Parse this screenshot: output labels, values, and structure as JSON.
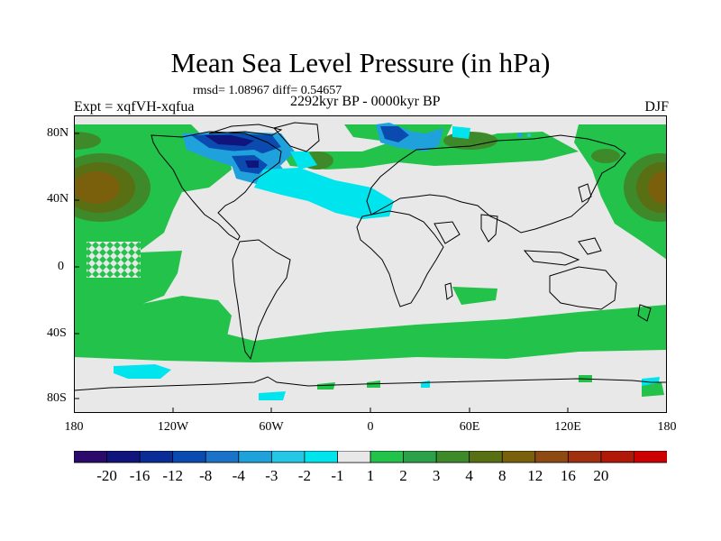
{
  "title": "Mean Sea Level Pressure (in hPa)",
  "stats": "rmsd= 1.08967 diff= 0.54657",
  "experiment": "Expt = xqfVH-xqfua",
  "period": "2292kyr BP - 0000kyr BP",
  "season": "DJF",
  "lat_labels": [
    "80N",
    "40N",
    "0",
    "40S",
    "80S"
  ],
  "lon_labels": [
    "180",
    "120W",
    "60W",
    "0",
    "60E",
    "120E",
    "180"
  ],
  "colorbar": {
    "colors": [
      "#2a0a6b",
      "#10157e",
      "#0a2c96",
      "#0b4bb0",
      "#1a73c8",
      "#1fa2dc",
      "#24c8e6",
      "#00e4ee",
      "#e8e8e8",
      "#23c24a",
      "#2ba24a",
      "#3e8a2a",
      "#586f14",
      "#7a5f0c",
      "#8e4a13",
      "#a03010",
      "#b01808",
      "#cc0000"
    ],
    "labels": [
      "-20",
      "-16",
      "-12",
      "-8",
      "-4",
      "-3",
      "-2",
      "-1",
      "1",
      "2",
      "3",
      "4",
      "8",
      "12",
      "16",
      "20"
    ]
  }
}
